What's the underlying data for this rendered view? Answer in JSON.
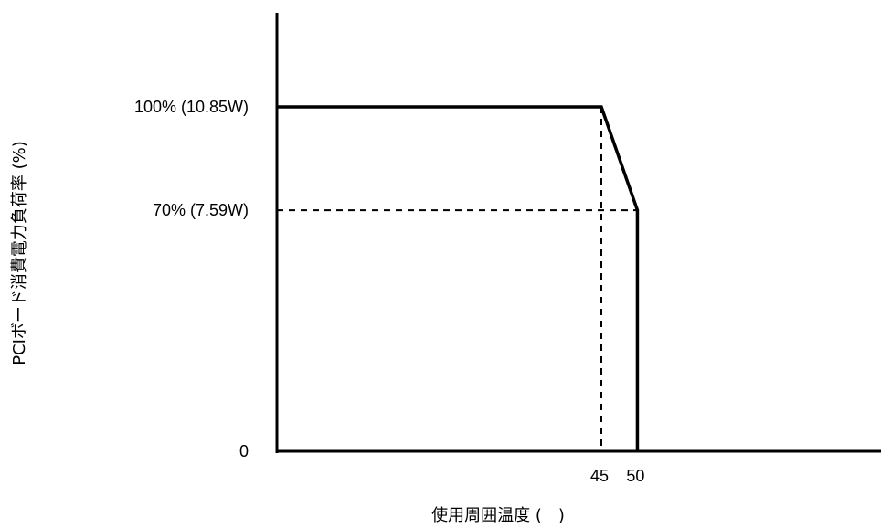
{
  "chart_data": {
    "type": "line",
    "title": "",
    "xlabel": "使用周囲温度 (　)",
    "ylabel": "PCIボード消費電力負荷率 (%)",
    "x_ticks": [
      "45",
      "50"
    ],
    "y_ticks": [
      {
        "value": 0,
        "label": "0"
      },
      {
        "value": 70,
        "label": "70% (7.59W)"
      },
      {
        "value": 100,
        "label": "100% (10.85W)"
      }
    ],
    "series": [
      {
        "points": [
          {
            "x": 0,
            "y": 100
          },
          {
            "x": 45,
            "y": 100
          },
          {
            "x": 50,
            "y": 70
          },
          {
            "x": 50,
            "y": 0
          }
        ]
      }
    ],
    "reference_lines": [
      {
        "style": "dashed",
        "from": {
          "x": 0,
          "y": 70
        },
        "to": {
          "x": 50,
          "y": 70
        }
      },
      {
        "style": "dashed",
        "from": {
          "x": 45,
          "y": 100
        },
        "to": {
          "x": 45,
          "y": 0
        }
      }
    ],
    "grid": false,
    "legend": "none"
  },
  "colors": {
    "line": "#000000",
    "background": "#ffffff"
  }
}
